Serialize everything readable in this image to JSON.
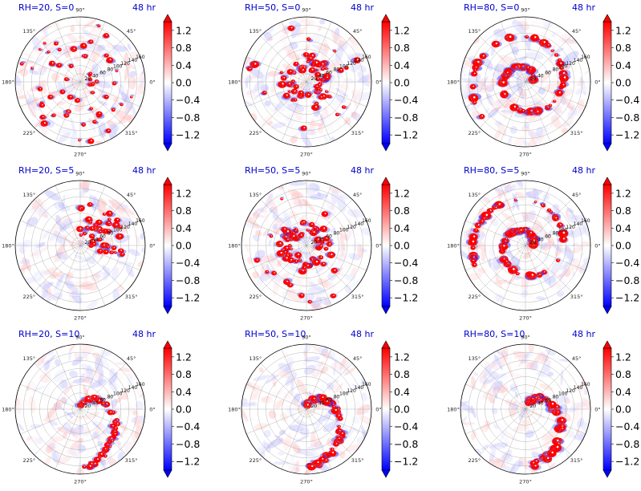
{
  "chart_data": {
    "type": "heatmap",
    "projection": "polar",
    "shared": {
      "time_label": "48 hr",
      "angle_ticks": [
        "0°",
        "45°",
        "90°",
        "135°",
        "180°",
        "225°",
        "270°",
        "315°"
      ],
      "radial_ticks": [
        "20",
        "40",
        "60",
        "80",
        "100",
        "120",
        "140",
        "160"
      ],
      "colorbar": {
        "colormap": "bwr",
        "ticks": [
          "1.2",
          "0.8",
          "0.4",
          "0.0",
          "−0.4",
          "−0.8",
          "−1.2"
        ],
        "range": [
          -1.4,
          1.4
        ],
        "extend": "both"
      },
      "colors": {
        "positive": "#ff0000",
        "negative": "#0000ff",
        "neutral": "#ffffff",
        "title": "#0000cc"
      }
    },
    "panels": [
      {
        "title": "RH=20, S=0",
        "rh": 20,
        "s": 0,
        "pattern": "scattered"
      },
      {
        "title": "RH=50, S=0",
        "rh": 50,
        "s": 0,
        "pattern": "ring"
      },
      {
        "title": "RH=80, S=0",
        "rh": 80,
        "s": 0,
        "pattern": "spiral"
      },
      {
        "title": "RH=20, S=5",
        "rh": 20,
        "s": 5,
        "pattern": "upshear-arc"
      },
      {
        "title": "RH=50, S=5",
        "rh": 50,
        "s": 5,
        "pattern": "ring"
      },
      {
        "title": "RH=80, S=5",
        "rh": 80,
        "s": 5,
        "pattern": "spiral"
      },
      {
        "title": "RH=20, S=10",
        "rh": 20,
        "s": 10,
        "pattern": "arc"
      },
      {
        "title": "RH=50, S=10",
        "rh": 50,
        "s": 10,
        "pattern": "arc"
      },
      {
        "title": "RH=80, S=10",
        "rh": 80,
        "s": 10,
        "pattern": "arc"
      }
    ]
  }
}
